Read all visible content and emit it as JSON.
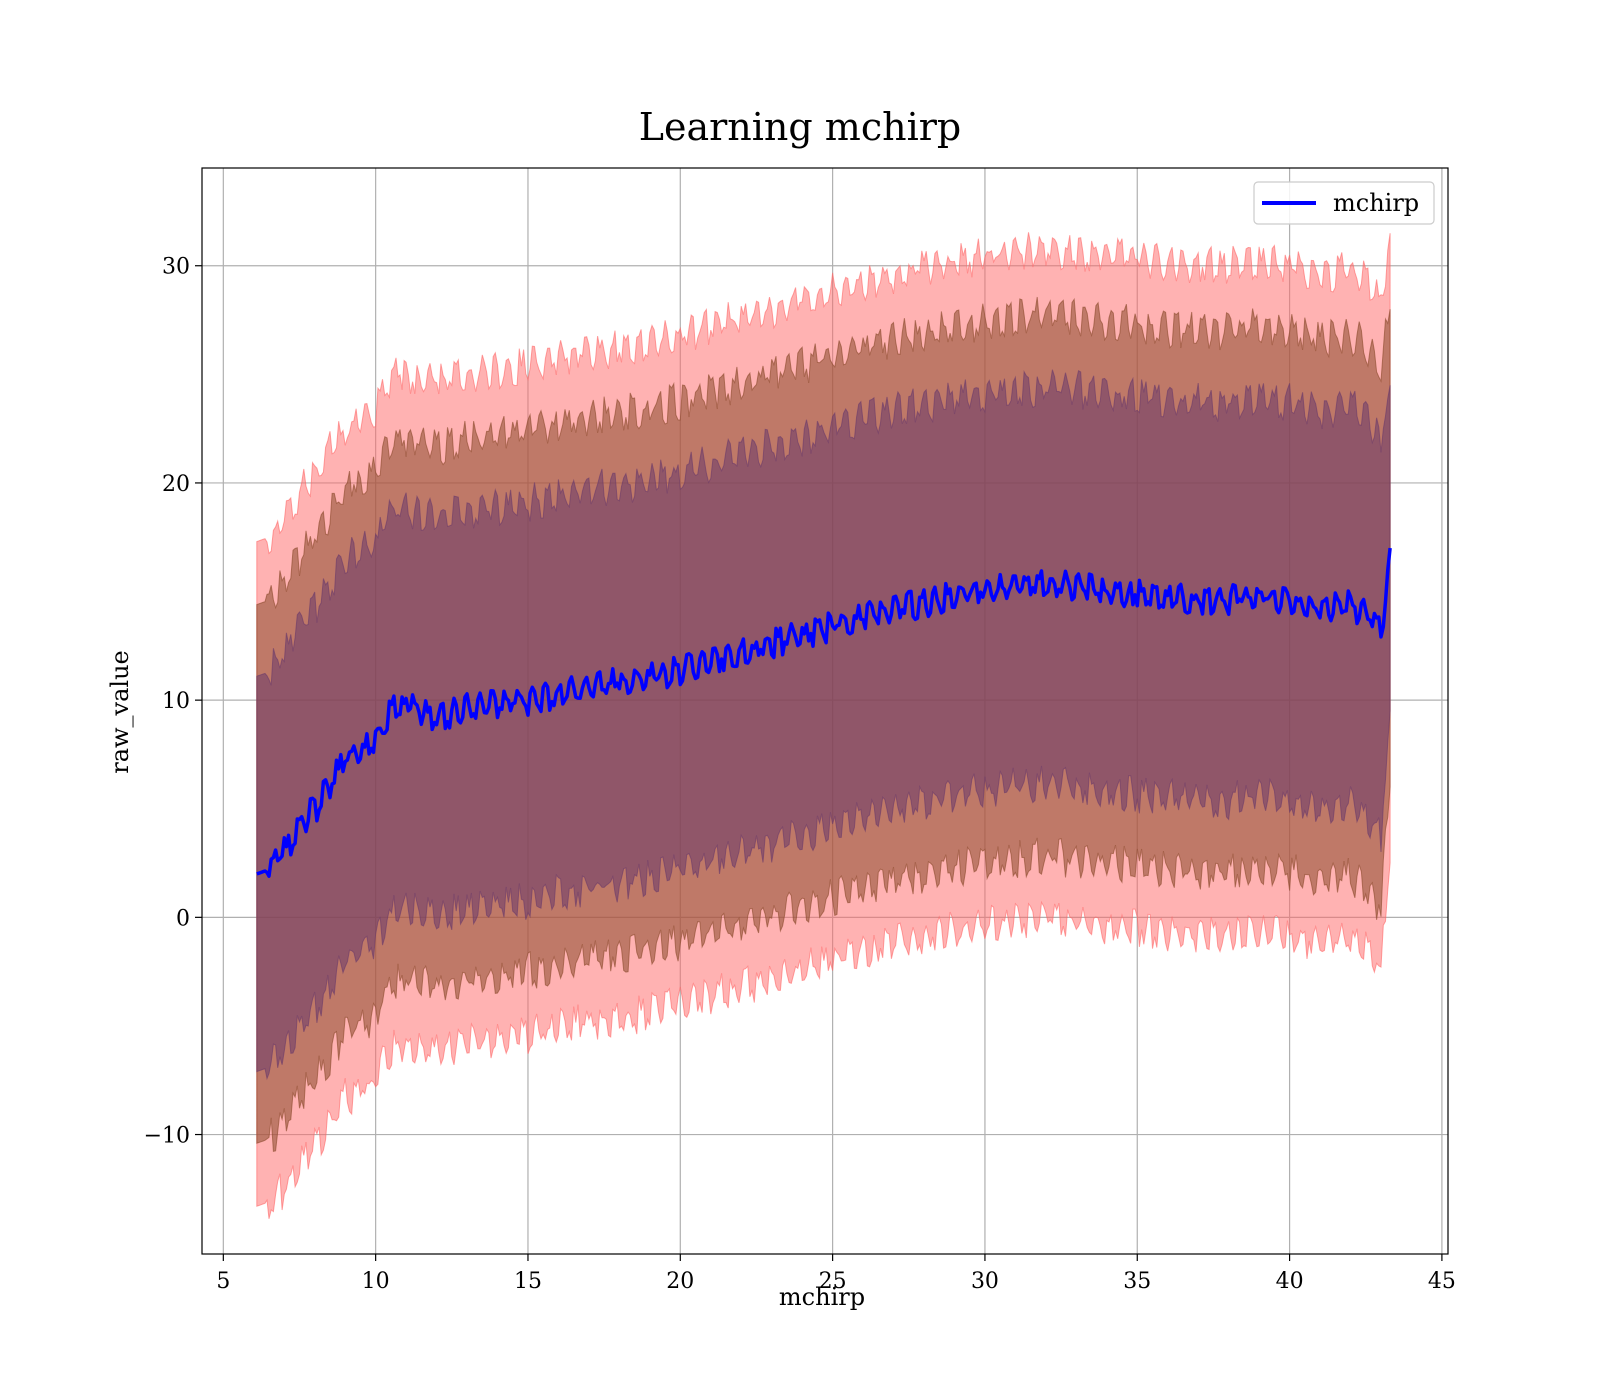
{
  "chart_data": {
    "type": "area",
    "title": "Learning mchirp",
    "xlabel": "mchirp",
    "ylabel": "raw_value",
    "xlim": [
      4.3,
      45.2
    ],
    "ylim": [
      -15.5,
      34.5
    ],
    "x_ticks": [
      5,
      10,
      15,
      20,
      25,
      30,
      35,
      40,
      45
    ],
    "y_ticks": [
      -10,
      0,
      10,
      20,
      30
    ],
    "y_tick_labels": [
      "−10",
      "0",
      "10",
      "20",
      "30"
    ],
    "grid": true,
    "legend": {
      "position": "top-right",
      "entries": [
        "mchirp"
      ]
    },
    "x": [
      6.1,
      6.5,
      7.0,
      7.5,
      8.0,
      8.5,
      9.0,
      9.5,
      10.0,
      10.3,
      10.6,
      11.0,
      11.5,
      12.0,
      12.5,
      13.0,
      14.0,
      15.0,
      16.0,
      17.0,
      18.0,
      19.0,
      20.0,
      21.0,
      22.0,
      23.0,
      24.0,
      25.0,
      26.0,
      27.0,
      28.0,
      29.0,
      30.0,
      31.0,
      32.0,
      33.0,
      34.0,
      35.0,
      36.0,
      37.0,
      38.0,
      39.0,
      40.0,
      41.0,
      41.5,
      42.0,
      42.5,
      43.0,
      43.3
    ],
    "series": [
      {
        "name": "mchirp",
        "color": "#0000ff",
        "values": [
          2.0,
          2.2,
          3.0,
          4.2,
          5.0,
          6.0,
          7.3,
          7.6,
          8.0,
          9.0,
          9.5,
          9.8,
          9.4,
          9.3,
          9.4,
          9.6,
          9.8,
          10.0,
          10.3,
          10.6,
          10.8,
          11.0,
          11.4,
          11.8,
          12.2,
          12.6,
          13.0,
          13.4,
          13.8,
          14.2,
          14.5,
          14.8,
          15.0,
          15.2,
          15.3,
          15.2,
          15.0,
          14.9,
          14.7,
          14.6,
          14.6,
          14.8,
          14.6,
          14.2,
          14.3,
          14.4,
          14.0,
          13.0,
          17.0
        ]
      }
    ],
    "bands": [
      {
        "sigma": 3,
        "color": "#ff6666",
        "upper": [
          17.3,
          17.5,
          18.5,
          19.5,
          20.5,
          21.5,
          22.5,
          23.0,
          23.3,
          24.5,
          25.0,
          25.0,
          24.8,
          24.7,
          24.8,
          25.0,
          25.2,
          25.4,
          25.7,
          26.0,
          26.2,
          26.4,
          26.8,
          27.2,
          27.6,
          28.0,
          28.4,
          28.8,
          29.2,
          29.6,
          29.9,
          30.2,
          30.4,
          30.6,
          30.7,
          30.6,
          30.4,
          30.3,
          30.1,
          30.0,
          30.0,
          30.2,
          30.0,
          29.6,
          29.7,
          29.8,
          29.4,
          28.4,
          31.5
        ],
        "lower": [
          -13.3,
          -13.1,
          -12.5,
          -11.5,
          -10.5,
          -9.5,
          -8.3,
          -8.0,
          -7.5,
          -6.5,
          -6.0,
          -5.8,
          -6.0,
          -6.1,
          -6.0,
          -5.8,
          -5.6,
          -5.4,
          -5.1,
          -4.8,
          -4.6,
          -4.4,
          -4.0,
          -3.6,
          -3.2,
          -2.8,
          -2.4,
          -2.0,
          -1.6,
          -1.2,
          -0.9,
          -0.6,
          -0.4,
          -0.2,
          -0.1,
          -0.2,
          -0.4,
          -0.5,
          -0.7,
          -0.8,
          -0.8,
          -0.6,
          -0.8,
          -1.2,
          -1.1,
          -1.0,
          -1.4,
          -2.4,
          2.5
        ]
      },
      {
        "sigma": 2,
        "color": "#8b4a2b",
        "upper": [
          14.4,
          14.6,
          15.5,
          16.6,
          17.5,
          18.5,
          19.8,
          20.1,
          20.5,
          21.5,
          22.0,
          22.1,
          21.8,
          21.7,
          21.8,
          22.0,
          22.2,
          22.4,
          22.7,
          23.0,
          23.2,
          23.4,
          23.8,
          24.2,
          24.6,
          25.0,
          25.4,
          25.8,
          26.2,
          26.6,
          26.9,
          27.2,
          27.4,
          27.6,
          27.7,
          27.6,
          27.4,
          27.3,
          27.1,
          27.0,
          27.0,
          27.2,
          27.0,
          26.6,
          26.7,
          26.8,
          26.4,
          25.4,
          28.0
        ],
        "lower": [
          -10.4,
          -10.2,
          -9.5,
          -8.4,
          -7.5,
          -6.5,
          -5.2,
          -4.9,
          -4.5,
          -3.5,
          -3.0,
          -2.9,
          -3.1,
          -3.2,
          -3.1,
          -2.9,
          -2.7,
          -2.5,
          -2.2,
          -1.9,
          -1.7,
          -1.5,
          -1.1,
          -0.7,
          -0.3,
          0.1,
          0.5,
          0.9,
          1.3,
          1.7,
          2.0,
          2.3,
          2.5,
          2.7,
          2.8,
          2.7,
          2.5,
          2.4,
          2.2,
          2.1,
          2.1,
          2.3,
          2.1,
          1.7,
          1.8,
          1.9,
          1.5,
          0.5,
          6.0
        ]
      },
      {
        "sigma": 1,
        "color": "#6a3a6a",
        "upper": [
          11.1,
          11.3,
          12.2,
          13.3,
          14.2,
          15.2,
          16.5,
          16.8,
          17.2,
          18.2,
          18.7,
          18.8,
          18.5,
          18.4,
          18.5,
          18.7,
          18.9,
          19.1,
          19.4,
          19.7,
          19.9,
          20.1,
          20.5,
          20.9,
          21.3,
          21.7,
          22.1,
          22.5,
          22.9,
          23.3,
          23.6,
          23.9,
          24.1,
          24.3,
          24.4,
          24.3,
          24.1,
          24.0,
          23.8,
          23.7,
          23.7,
          23.9,
          23.7,
          23.3,
          23.4,
          23.5,
          23.1,
          22.1,
          24.5
        ],
        "lower": [
          -7.1,
          -6.9,
          -6.2,
          -5.1,
          -4.2,
          -3.2,
          -1.9,
          -1.6,
          -1.2,
          -0.2,
          0.3,
          0.4,
          0.2,
          0.1,
          0.2,
          0.4,
          0.6,
          0.8,
          1.1,
          1.4,
          1.6,
          1.8,
          2.2,
          2.6,
          3.0,
          3.4,
          3.8,
          4.2,
          4.6,
          5.0,
          5.3,
          5.6,
          5.8,
          6.0,
          6.1,
          6.0,
          5.8,
          5.7,
          5.5,
          5.4,
          5.4,
          5.6,
          5.4,
          5.0,
          5.1,
          5.2,
          4.8,
          3.8,
          9.5
        ]
      }
    ]
  }
}
